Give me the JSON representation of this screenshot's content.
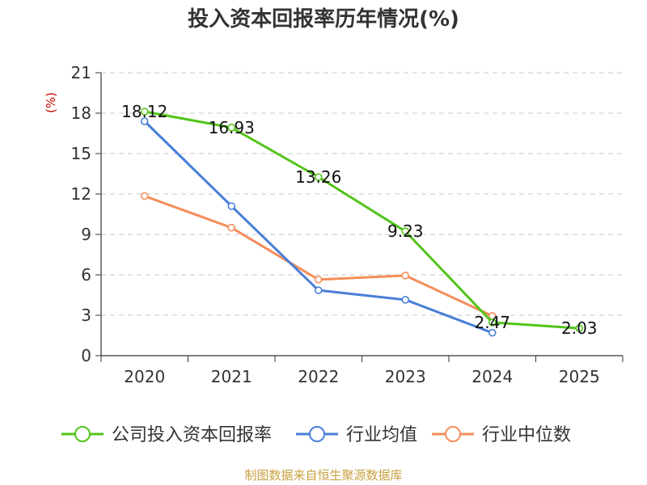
{
  "chart_data": {
    "type": "line",
    "title": "投入资本回报率历年情况(%)",
    "ylabel": "(%)",
    "xlabel": "",
    "categories": [
      "2020",
      "2021",
      "2022",
      "2023",
      "2024",
      "2025"
    ],
    "ylim": [
      0,
      21
    ],
    "yticks": [
      0,
      3,
      6,
      9,
      12,
      15,
      18,
      21
    ],
    "grid": true,
    "legend": "bottom",
    "series": [
      {
        "name": "公司投入资本回报率",
        "color": "#52c41a",
        "values": [
          18.12,
          16.93,
          13.26,
          9.23,
          2.47,
          2.03
        ],
        "labels": [
          "18.12",
          "16.93",
          "13.26",
          "9.23",
          "2.47",
          "2.03"
        ]
      },
      {
        "name": "行业均值",
        "color": "#4a7fd8",
        "values": [
          17.4,
          11.1,
          4.85,
          4.15,
          1.7,
          null
        ]
      },
      {
        "name": "行业中位数",
        "color": "#f58d5a",
        "values": [
          11.85,
          9.5,
          5.65,
          5.95,
          2.95,
          null
        ]
      }
    ],
    "source": "制图数据来自恒生聚源数据库"
  }
}
